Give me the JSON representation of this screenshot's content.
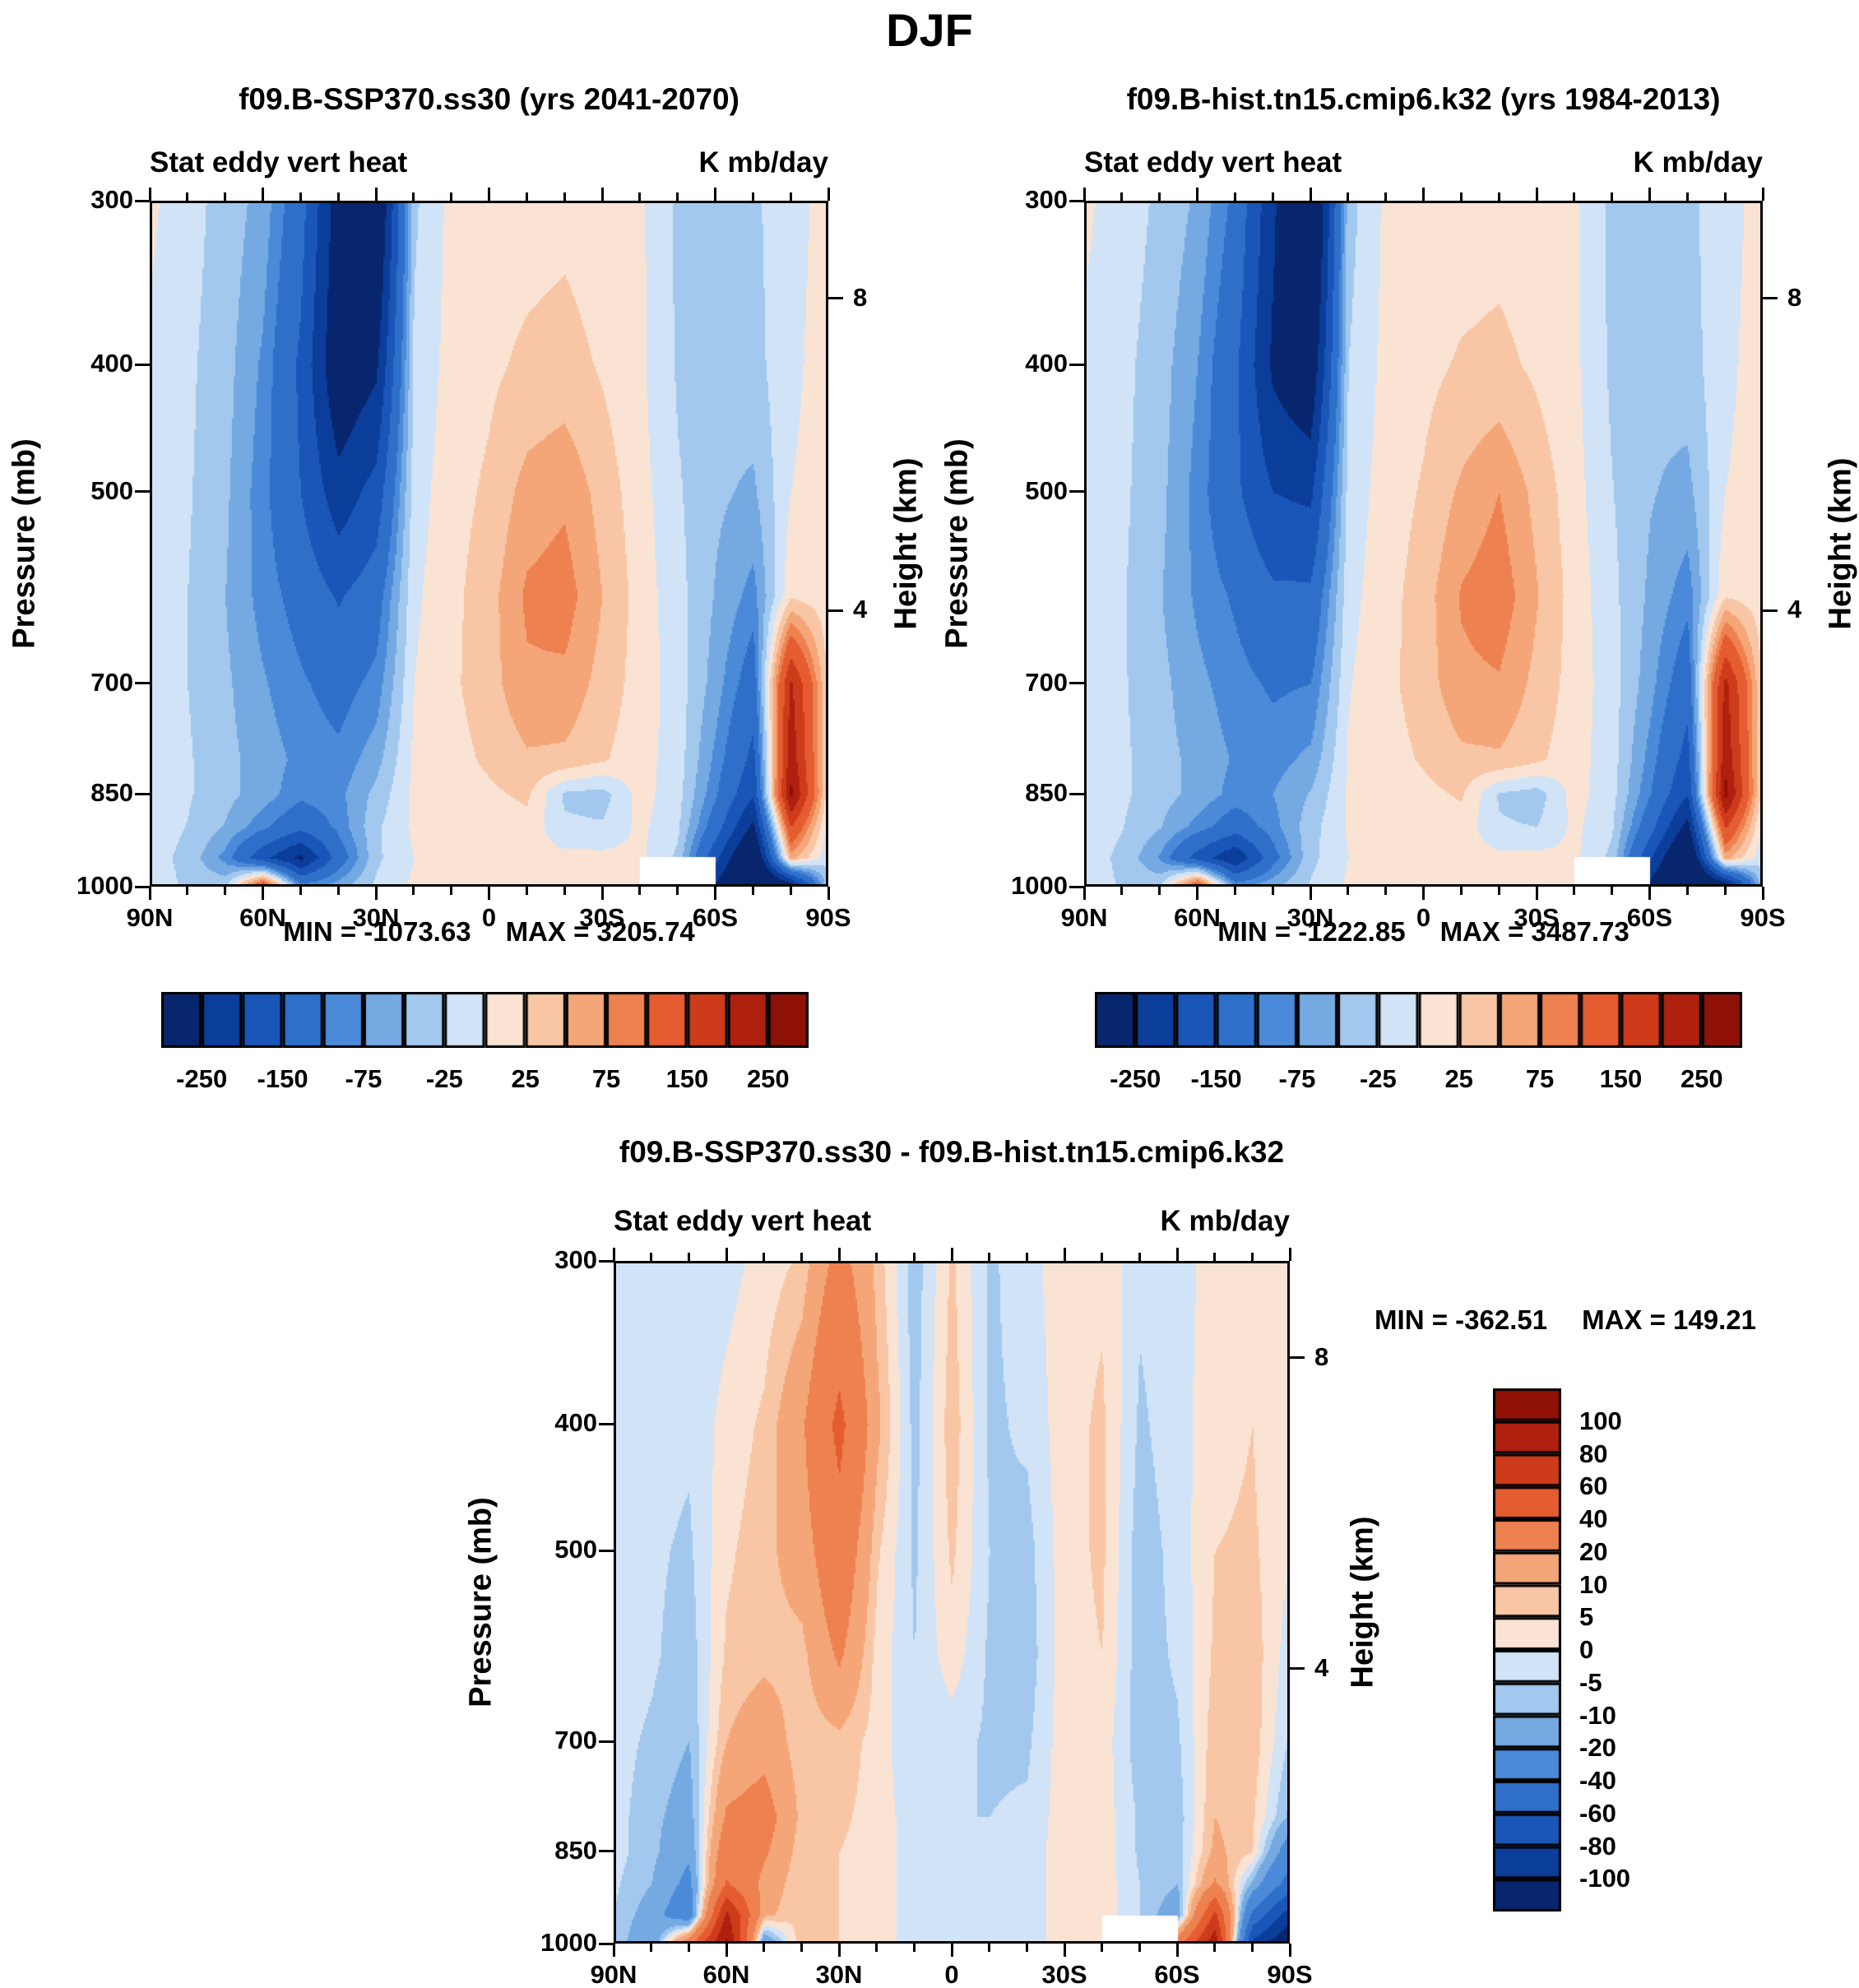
{
  "title": "DJF",
  "panels": [
    {
      "title": "f09.B-SSP370.ss30 (yrs 2041-2070)",
      "subtitle_left": "Stat eddy vert heat",
      "subtitle_right": "K mb/day",
      "pressure_label": "Pressure (mb)",
      "height_label": "Height (km)",
      "stats": {
        "min": "MIN = -1073.63",
        "max": "MAX = 3205.74"
      },
      "pressure_ticks": [
        {
          "label": "300",
          "p": 300
        },
        {
          "label": "400",
          "p": 400
        },
        {
          "label": "500",
          "p": 500
        },
        {
          "label": "700",
          "p": 700
        },
        {
          "label": "850",
          "p": 850
        },
        {
          "label": "1000",
          "p": 1000
        }
      ],
      "height_ticks": [
        {
          "label": "8",
          "p": 356
        },
        {
          "label": "4",
          "p": 616
        }
      ],
      "lat_ticks": [
        {
          "label": "90N",
          "lat": 90
        },
        {
          "label": "60N",
          "lat": 60
        },
        {
          "label": "30N",
          "lat": 30
        },
        {
          "label": "0",
          "lat": 0
        },
        {
          "label": "30S",
          "lat": -30
        },
        {
          "label": "60S",
          "lat": -60
        },
        {
          "label": "90S",
          "lat": -90
        }
      ]
    },
    {
      "title": "f09.B-hist.tn15.cmip6.k32 (yrs 1984-2013)",
      "subtitle_left": "Stat eddy vert heat",
      "subtitle_right": "K mb/day",
      "pressure_label": "Pressure (mb)",
      "height_label": "Height (km)",
      "stats": {
        "min": "MIN = -1222.85",
        "max": "MAX = 3487.73"
      },
      "pressure_ticks": [
        {
          "label": "300",
          "p": 300
        },
        {
          "label": "400",
          "p": 400
        },
        {
          "label": "500",
          "p": 500
        },
        {
          "label": "700",
          "p": 700
        },
        {
          "label": "850",
          "p": 850
        },
        {
          "label": "1000",
          "p": 1000
        }
      ],
      "height_ticks": [
        {
          "label": "8",
          "p": 356
        },
        {
          "label": "4",
          "p": 616
        }
      ],
      "lat_ticks": [
        {
          "label": "90N",
          "lat": 90
        },
        {
          "label": "60N",
          "lat": 60
        },
        {
          "label": "30N",
          "lat": 30
        },
        {
          "label": "0",
          "lat": 0
        },
        {
          "label": "30S",
          "lat": -30
        },
        {
          "label": "60S",
          "lat": -60
        },
        {
          "label": "90S",
          "lat": -90
        }
      ]
    },
    {
      "title": "f09.B-SSP370.ss30 - f09.B-hist.tn15.cmip6.k32",
      "subtitle_left": "Stat eddy vert heat",
      "subtitle_right": "K mb/day",
      "pressure_label": "Pressure (mb)",
      "height_label": "Height (km)",
      "stats": {
        "min": "MIN = -362.51",
        "max": "MAX = 149.21"
      },
      "pressure_ticks": [
        {
          "label": "300",
          "p": 300
        },
        {
          "label": "400",
          "p": 400
        },
        {
          "label": "500",
          "p": 500
        },
        {
          "label": "700",
          "p": 700
        },
        {
          "label": "850",
          "p": 850
        },
        {
          "label": "1000",
          "p": 1000
        }
      ],
      "height_ticks": [
        {
          "label": "8",
          "p": 356
        },
        {
          "label": "4",
          "p": 616
        }
      ],
      "lat_ticks": [
        {
          "label": "90N",
          "lat": 90
        },
        {
          "label": "60N",
          "lat": 60
        },
        {
          "label": "30N",
          "lat": 30
        },
        {
          "label": "0",
          "lat": 0
        },
        {
          "label": "30S",
          "lat": -30
        },
        {
          "label": "60S",
          "lat": -60
        },
        {
          "label": "90S",
          "lat": -90
        }
      ]
    }
  ],
  "colorbars": {
    "top": {
      "labels": [
        "-250",
        "-150",
        "-75",
        "-25",
        "25",
        "75",
        "150",
        "250"
      ],
      "boundaries": [
        -250,
        -200,
        -150,
        -100,
        -75,
        -50,
        -25,
        0,
        25,
        50,
        75,
        100,
        150,
        200,
        250
      ],
      "colors": [
        "#08266e",
        "#0b3d9b",
        "#1a55b8",
        "#2e6fca",
        "#4a8ad8",
        "#74a9e2",
        "#a2c8ee",
        "#d1e3f6",
        "#fbe3d4",
        "#f8c6a5",
        "#f4a678",
        "#ee8150",
        "#e55c30",
        "#ce3b1b",
        "#b0200e",
        "#8f1106"
      ]
    },
    "diff": {
      "labels": [
        "100",
        "80",
        "60",
        "40",
        "20",
        "10",
        "5",
        "0",
        "-5",
        "-10",
        "-20",
        "-40",
        "-60",
        "-80",
        "-100"
      ],
      "boundaries": [
        -100,
        -80,
        -60,
        -40,
        -20,
        -10,
        -5,
        0,
        5,
        10,
        20,
        40,
        60,
        80,
        100
      ],
      "colors": [
        "#08266e",
        "#0b3d9b",
        "#1a55b8",
        "#2e6fca",
        "#4a8ad8",
        "#74a9e2",
        "#a2c8ee",
        "#d1e3f6",
        "#fbe3d4",
        "#f8c6a5",
        "#f4a678",
        "#ee8150",
        "#e55c30",
        "#ce3b1b",
        "#b0200e",
        "#8f1106"
      ]
    }
  },
  "chart_data": [
    {
      "type": "heatmap",
      "title": "f09.B-SSP370.ss30 (yrs 2041-2070)",
      "variable": "Stat eddy vert heat",
      "units": "K mb/day",
      "x_axis": "latitude (90N left to 90S right)",
      "y_axis": "pressure (mb, log scale 300 top to 1000 bottom)",
      "min": -1073.63,
      "max": 3205.74,
      "contour_levels": [
        -250,
        -200,
        -150,
        -100,
        -75,
        -50,
        -25,
        0,
        25,
        50,
        75,
        100,
        150,
        200,
        250
      ],
      "lats": [
        90,
        80,
        70,
        60,
        50,
        40,
        30,
        20,
        10,
        0,
        -10,
        -20,
        -30,
        -40,
        -50,
        -60,
        -70,
        -80,
        -90
      ],
      "levels_mb": [
        300,
        400,
        500,
        600,
        700,
        800,
        850,
        900,
        950,
        1000
      ],
      "values": [
        [
          5,
          -15,
          -35,
          -60,
          -130,
          -280,
          -330,
          -30,
          8,
          15,
          15,
          18,
          12,
          5,
          -30,
          -45,
          -30,
          -8,
          8
        ],
        [
          -5,
          -20,
          -40,
          -80,
          -160,
          -300,
          -260,
          -20,
          10,
          20,
          30,
          35,
          22,
          5,
          -28,
          -42,
          -35,
          -5,
          10
        ],
        [
          -8,
          -22,
          -45,
          -90,
          -150,
          -230,
          -180,
          -12,
          15,
          30,
          60,
          70,
          40,
          10,
          -22,
          -45,
          -55,
          0,
          10
        ],
        [
          -8,
          -25,
          -50,
          -85,
          -115,
          -155,
          -120,
          -5,
          18,
          40,
          80,
          88,
          50,
          14,
          -16,
          -52,
          -85,
          20,
          10
        ],
        [
          -10,
          -25,
          -45,
          -72,
          -95,
          -115,
          -90,
          0,
          20,
          40,
          70,
          68,
          40,
          14,
          -12,
          -62,
          -125,
          210,
          15
        ],
        [
          -10,
          -22,
          -42,
          -62,
          -82,
          -92,
          -60,
          5,
          15,
          30,
          46,
          44,
          28,
          10,
          -12,
          -82,
          -165,
          235,
          10
        ],
        [
          -10,
          -22,
          -42,
          -62,
          -92,
          -82,
          -42,
          5,
          10,
          20,
          30,
          -30,
          -36,
          10,
          -15,
          -95,
          -195,
          265,
          5
        ],
        [
          -12,
          -26,
          -52,
          -92,
          -135,
          -92,
          -30,
          5,
          6,
          10,
          16,
          -20,
          -22,
          6,
          -20,
          -125,
          -265,
          150,
          -10
        ],
        [
          -15,
          -32,
          -85,
          -185,
          -265,
          -125,
          -30,
          0,
          5,
          6,
          10,
          8,
          8,
          5,
          -30,
          -185,
          -345,
          60,
          -20
        ],
        [
          -10,
          -30,
          -30,
          160,
          -80,
          -60,
          -20,
          5,
          5,
          5,
          10,
          10,
          6,
          5,
          null,
          -260,
          -385,
          -300,
          -30
        ]
      ]
    },
    {
      "type": "heatmap",
      "title": "f09.B-hist.tn15.cmip6.k32 (yrs 1984-2013)",
      "variable": "Stat eddy vert heat",
      "units": "K mb/day",
      "x_axis": "latitude (90N left to 90S right)",
      "y_axis": "pressure (mb, log scale 300 top to 1000 bottom)",
      "min": -1222.85,
      "max": 3487.73,
      "contour_levels": [
        -250,
        -200,
        -150,
        -100,
        -75,
        -50,
        -25,
        0,
        25,
        50,
        75,
        100,
        150,
        200,
        250
      ],
      "lats": [
        90,
        80,
        70,
        60,
        50,
        40,
        30,
        20,
        10,
        0,
        -10,
        -20,
        -30,
        -40,
        -50,
        -60,
        -70,
        -80,
        -90
      ],
      "levels_mb": [
        300,
        400,
        500,
        600,
        700,
        800,
        850,
        900,
        950,
        1000
      ],
      "values": [
        [
          5,
          -12,
          -30,
          -55,
          -110,
          -240,
          -360,
          -35,
          5,
          12,
          12,
          15,
          10,
          5,
          -32,
          -48,
          -32,
          -8,
          8
        ],
        [
          -5,
          -18,
          -38,
          -75,
          -140,
          -260,
          -300,
          -25,
          8,
          18,
          28,
          32,
          20,
          5,
          -30,
          -45,
          -38,
          -5,
          10
        ],
        [
          -8,
          -20,
          -42,
          -85,
          -140,
          -200,
          -210,
          -15,
          12,
          28,
          55,
          75,
          42,
          10,
          -24,
          -48,
          -58,
          0,
          10
        ],
        [
          -8,
          -22,
          -48,
          -80,
          -105,
          -140,
          -140,
          -8,
          15,
          38,
          78,
          92,
          52,
          14,
          -18,
          -55,
          -90,
          22,
          10
        ],
        [
          -10,
          -22,
          -42,
          -68,
          -88,
          -105,
          -100,
          -2,
          18,
          38,
          68,
          72,
          42,
          14,
          -14,
          -65,
          -130,
          215,
          15
        ],
        [
          -10,
          -20,
          -40,
          -58,
          -78,
          -85,
          -68,
          3,
          14,
          28,
          44,
          46,
          30,
          10,
          -14,
          -85,
          -170,
          240,
          10
        ],
        [
          -10,
          -20,
          -40,
          -58,
          -85,
          -75,
          -48,
          3,
          9,
          18,
          28,
          -28,
          -38,
          10,
          -16,
          -98,
          -200,
          270,
          5
        ],
        [
          -12,
          -24,
          -48,
          -85,
          -125,
          -85,
          -35,
          3,
          5,
          9,
          15,
          -22,
          -25,
          6,
          -22,
          -130,
          -270,
          155,
          -10
        ],
        [
          -14,
          -30,
          -78,
          -170,
          -245,
          -115,
          -32,
          0,
          4,
          5,
          9,
          8,
          8,
          5,
          -32,
          -190,
          -355,
          62,
          -20
        ],
        [
          -10,
          -28,
          -28,
          150,
          -75,
          -55,
          -22,
          4,
          4,
          5,
          9,
          9,
          6,
          5,
          null,
          -270,
          -395,
          -310,
          -30
        ]
      ]
    },
    {
      "type": "heatmap",
      "title": "f09.B-SSP370.ss30 - f09.B-hist.tn15.cmip6.k32",
      "variable": "Stat eddy vert heat",
      "units": "K mb/day",
      "x_axis": "latitude (90N left to 90S right)",
      "y_axis": "pressure (mb, log scale 300 top to 1000 bottom)",
      "min": -362.51,
      "max": 149.21,
      "contour_levels": [
        -100,
        -80,
        -60,
        -40,
        -20,
        -10,
        -5,
        0,
        5,
        10,
        20,
        40,
        60,
        80,
        100
      ],
      "lats": [
        90,
        80,
        70,
        60,
        50,
        40,
        30,
        20,
        10,
        0,
        -10,
        -20,
        -30,
        -40,
        -50,
        -60,
        -70,
        -80,
        -90
      ],
      "levels_mb": [
        300,
        400,
        500,
        600,
        700,
        800,
        850,
        900,
        950,
        1000
      ],
      "values": [
        [
          0,
          -2,
          -4,
          -2,
          2,
          6,
          25,
          8,
          -8,
          6,
          -6,
          -2,
          3,
          4,
          -4,
          -2,
          2,
          3,
          0
        ],
        [
          0,
          -3,
          -4,
          2,
          6,
          18,
          45,
          12,
          -7,
          8,
          -6,
          -4,
          3,
          6,
          -6,
          -2,
          3,
          5,
          0
        ],
        [
          -2,
          -4,
          -6,
          4,
          8,
          14,
          32,
          6,
          -6,
          6,
          -5,
          -7,
          3,
          6,
          -8,
          -3,
          5,
          6,
          0
        ],
        [
          -2,
          -4,
          -8,
          6,
          8,
          8,
          22,
          3,
          -5,
          3,
          -6,
          -8,
          3,
          5,
          -8,
          -4,
          6,
          8,
          -3
        ],
        [
          -3,
          -6,
          -10,
          10,
          16,
          6,
          8,
          3,
          -5,
          -3,
          -6,
          -6,
          3,
          3,
          -8,
          -6,
          8,
          8,
          -6
        ],
        [
          -3,
          -8,
          -14,
          22,
          26,
          8,
          6,
          3,
          -3,
          -5,
          -5,
          -4,
          3,
          3,
          -6,
          -8,
          10,
          6,
          -12
        ],
        [
          -3,
          -8,
          -18,
          32,
          22,
          6,
          5,
          3,
          -3,
          -5,
          -5,
          -3,
          3,
          3,
          -6,
          -8,
          12,
          5,
          -30
        ],
        [
          -4,
          -10,
          -24,
          42,
          16,
          5,
          5,
          3,
          -3,
          -5,
          -3,
          -3,
          3,
          3,
          -5,
          -10,
          22,
          -12,
          -50
        ],
        [
          -5,
          -14,
          -32,
          85,
          12,
          5,
          5,
          3,
          -3,
          -3,
          -3,
          -3,
          3,
          3,
          -5,
          -16,
          65,
          -45,
          -90
        ],
        [
          -5,
          -20,
          35,
          105,
          -22,
          10,
          5,
          3,
          -3,
          -3,
          -3,
          -3,
          3,
          3,
          null,
          32,
          95,
          -85,
          -125
        ]
      ]
    }
  ]
}
